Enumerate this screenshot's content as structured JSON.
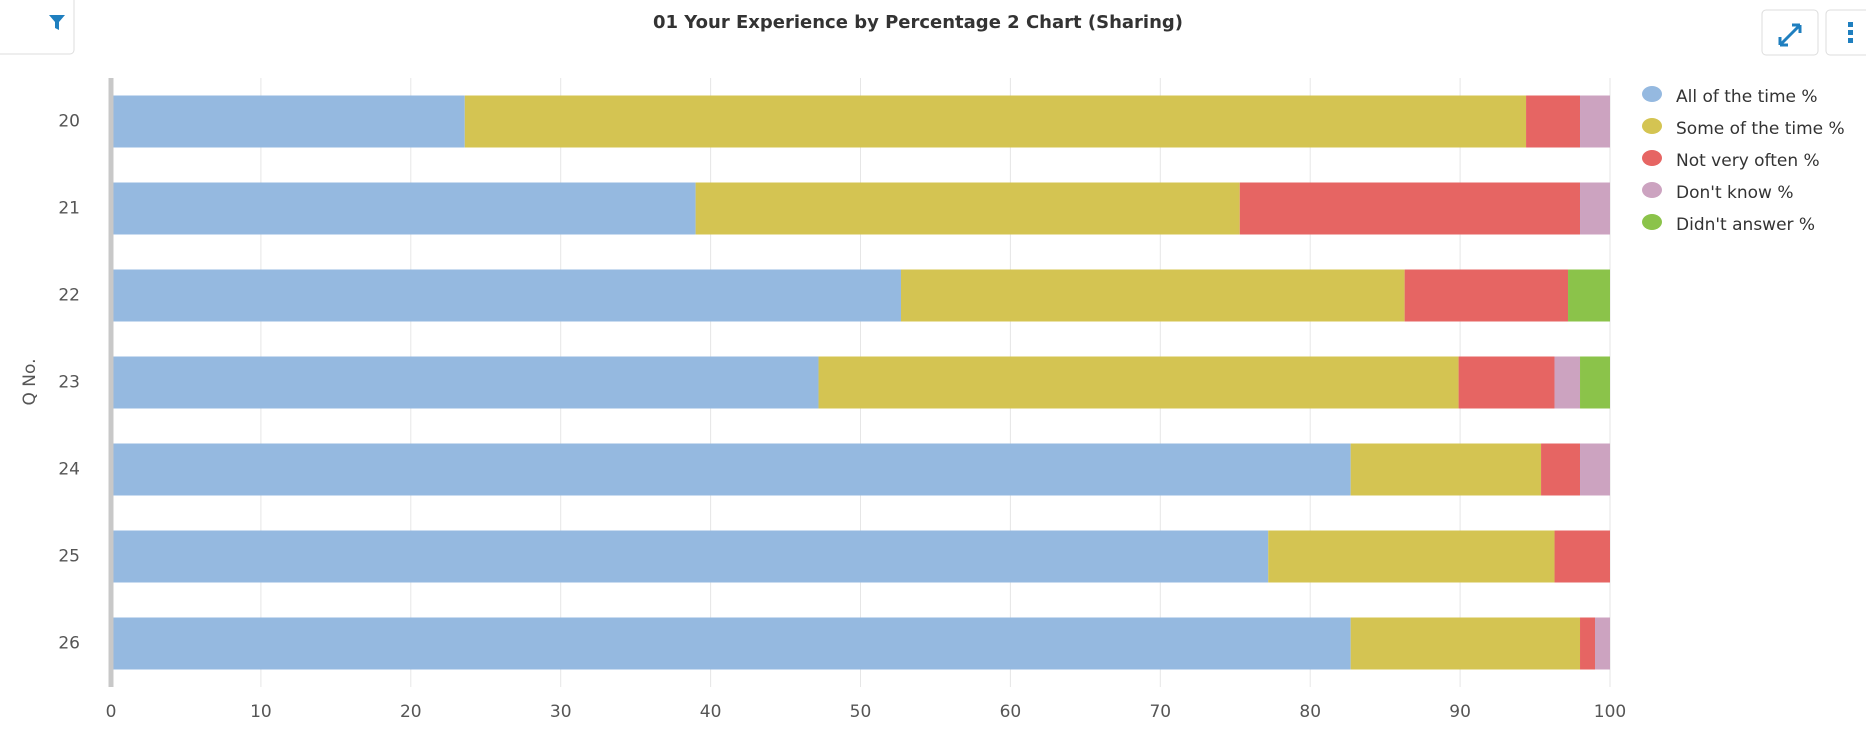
{
  "chart_data": {
    "type": "stacked-bar-horizontal",
    "title": "01 Your Experience by Percentage 2 Chart (Sharing)",
    "y_label": "Q No.",
    "categories": [
      "20",
      "21",
      "22",
      "23",
      "24",
      "25",
      "26"
    ],
    "series": [
      {
        "name": "All of the time %",
        "color": "#95b9e0",
        "values": [
          23.6,
          39.0,
          52.7,
          47.2,
          82.7,
          77.2,
          82.7
        ]
      },
      {
        "name": "Some of the time %",
        "color": "#d4c452",
        "values": [
          70.8,
          36.3,
          33.6,
          42.7,
          12.7,
          19.1,
          15.3
        ]
      },
      {
        "name": "Not very often %",
        "color": "#e66563",
        "values": [
          3.6,
          22.7,
          10.9,
          6.4,
          2.6,
          3.7,
          1.0
        ]
      },
      {
        "name": "Don't know %",
        "color": "#cca3c0",
        "values": [
          2.0,
          2.0,
          0,
          1.7,
          2.0,
          0,
          1.0
        ]
      },
      {
        "name": "Didn't answer %",
        "color": "#8bc34a",
        "values": [
          0,
          0,
          2.8,
          2.0,
          0,
          0,
          0
        ]
      }
    ],
    "xlim": [
      0,
      100
    ],
    "xticks": [
      0,
      10,
      20,
      30,
      40,
      50,
      60,
      70,
      80,
      90,
      100
    ],
    "grid": true,
    "legend": "right"
  }
}
